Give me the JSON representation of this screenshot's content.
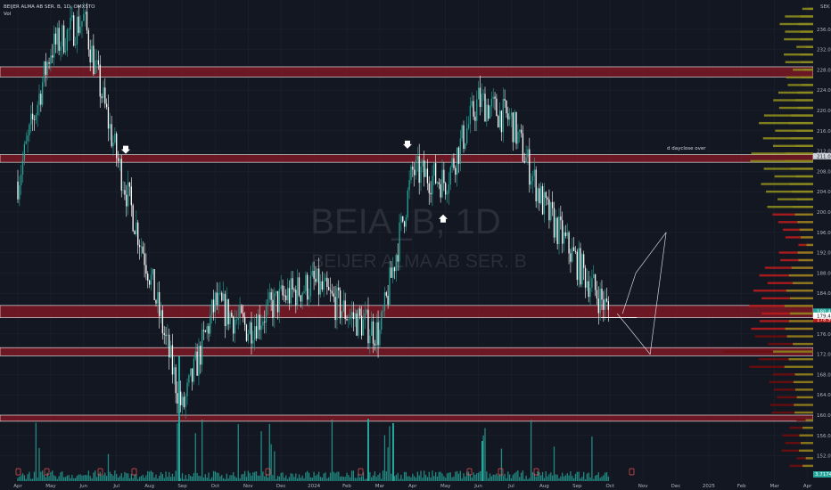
{
  "header": {
    "symbol_line": "BEIJER ALMA AB SER. B, 1D, OMXSTO",
    "vol_label": "Vol"
  },
  "watermark": {
    "ticker": "BEIA_B, 1D",
    "name": "BEIJER ALMA AB SER. B"
  },
  "annotation": {
    "text": "d dayclose over"
  },
  "currency": "SEK",
  "colors": {
    "background": "#131722",
    "up": "#26a69a",
    "down": "#ffffff",
    "zone_fill": "#8b1a26",
    "zone_border": "#ffffff",
    "volume": "#26a69a",
    "vp_dark": "#6e0d0d",
    "vp_red": "#b71c1c",
    "vp_olive": "#8c8a1e"
  },
  "chart_data": {
    "type": "candlestick",
    "title": "BEIJER ALMA AB SER. B, 1D, OMXSTO",
    "xlabel": "",
    "ylabel": "",
    "ylim": [
      150,
      240
    ],
    "y_ticks": [
      "236.0",
      "232.0",
      "228.0",
      "224.0",
      "220.0",
      "216.0",
      "212.0",
      "208.0",
      "204.0",
      "200.0",
      "196.0",
      "192.0",
      "188.0",
      "184.0",
      "180.0",
      "176.0",
      "172.0",
      "168.0",
      "164.0",
      "160.0",
      "156.0",
      "152.0"
    ],
    "x_ticks": [
      "Apr",
      "May",
      "Jun",
      "Jul",
      "Aug",
      "Sep",
      "Oct",
      "Nov",
      "Dec",
      "2024",
      "Feb",
      "Mar",
      "Apr",
      "May",
      "Jun",
      "Jul",
      "Aug",
      "Sep",
      "Oct",
      "Nov",
      "Dec",
      "2025",
      "Feb",
      "Mar",
      "Apr"
    ],
    "price_close": [
      {
        "month": "Apr",
        "close": 206
      },
      {
        "month": "May",
        "close": 232
      },
      {
        "month": "Jun",
        "close": 238
      },
      {
        "month": "Jul",
        "close": 211
      },
      {
        "month": "Aug",
        "close": 188
      },
      {
        "month": "Sep",
        "close": 161
      },
      {
        "month": "Oct",
        "close": 182
      },
      {
        "month": "Nov",
        "close": 177
      },
      {
        "month": "Dec",
        "close": 183
      },
      {
        "month": "2024",
        "close": 186
      },
      {
        "month": "Feb",
        "close": 180
      },
      {
        "month": "Mar",
        "close": 176
      },
      {
        "month": "Apr",
        "close": 208
      },
      {
        "month": "May",
        "close": 206
      },
      {
        "month": "Jun",
        "close": 222
      },
      {
        "month": "Jul",
        "close": 218
      },
      {
        "month": "Aug",
        "close": 201
      },
      {
        "month": "Sep",
        "close": 190
      },
      {
        "month": "Oct",
        "close": 180
      }
    ],
    "zones": [
      {
        "low": 226.6,
        "high": 228.6
      },
      {
        "low": 209.8,
        "high": 211.3
      },
      {
        "low": 179.2,
        "high": 181.6
      },
      {
        "low": 171.7,
        "high": 173.3
      },
      {
        "low": 158.8,
        "high": 160.0
      }
    ],
    "projection_paths": [
      [
        {
          "month": "Oct",
          "price": 180
        },
        {
          "month": "Oct",
          "price": 178
        },
        {
          "month": "Nov",
          "price": 172
        },
        {
          "month": "Nov",
          "price": 196
        }
      ],
      [
        {
          "month": "Oct",
          "price": 180
        },
        {
          "month": "Nov",
          "price": 188
        },
        {
          "month": "Nov",
          "price": 196
        }
      ]
    ],
    "markers": [
      {
        "month": "Jul",
        "price": 212,
        "direction": "down"
      },
      {
        "month": "Apr",
        "price": 213,
        "direction": "down"
      },
      {
        "month": "Apr",
        "price": 199,
        "direction": "up"
      }
    ],
    "price_labels": [
      "211.0",
      "180.4",
      "178.9",
      "179.4"
    ],
    "volume_label": "3.7174"
  }
}
